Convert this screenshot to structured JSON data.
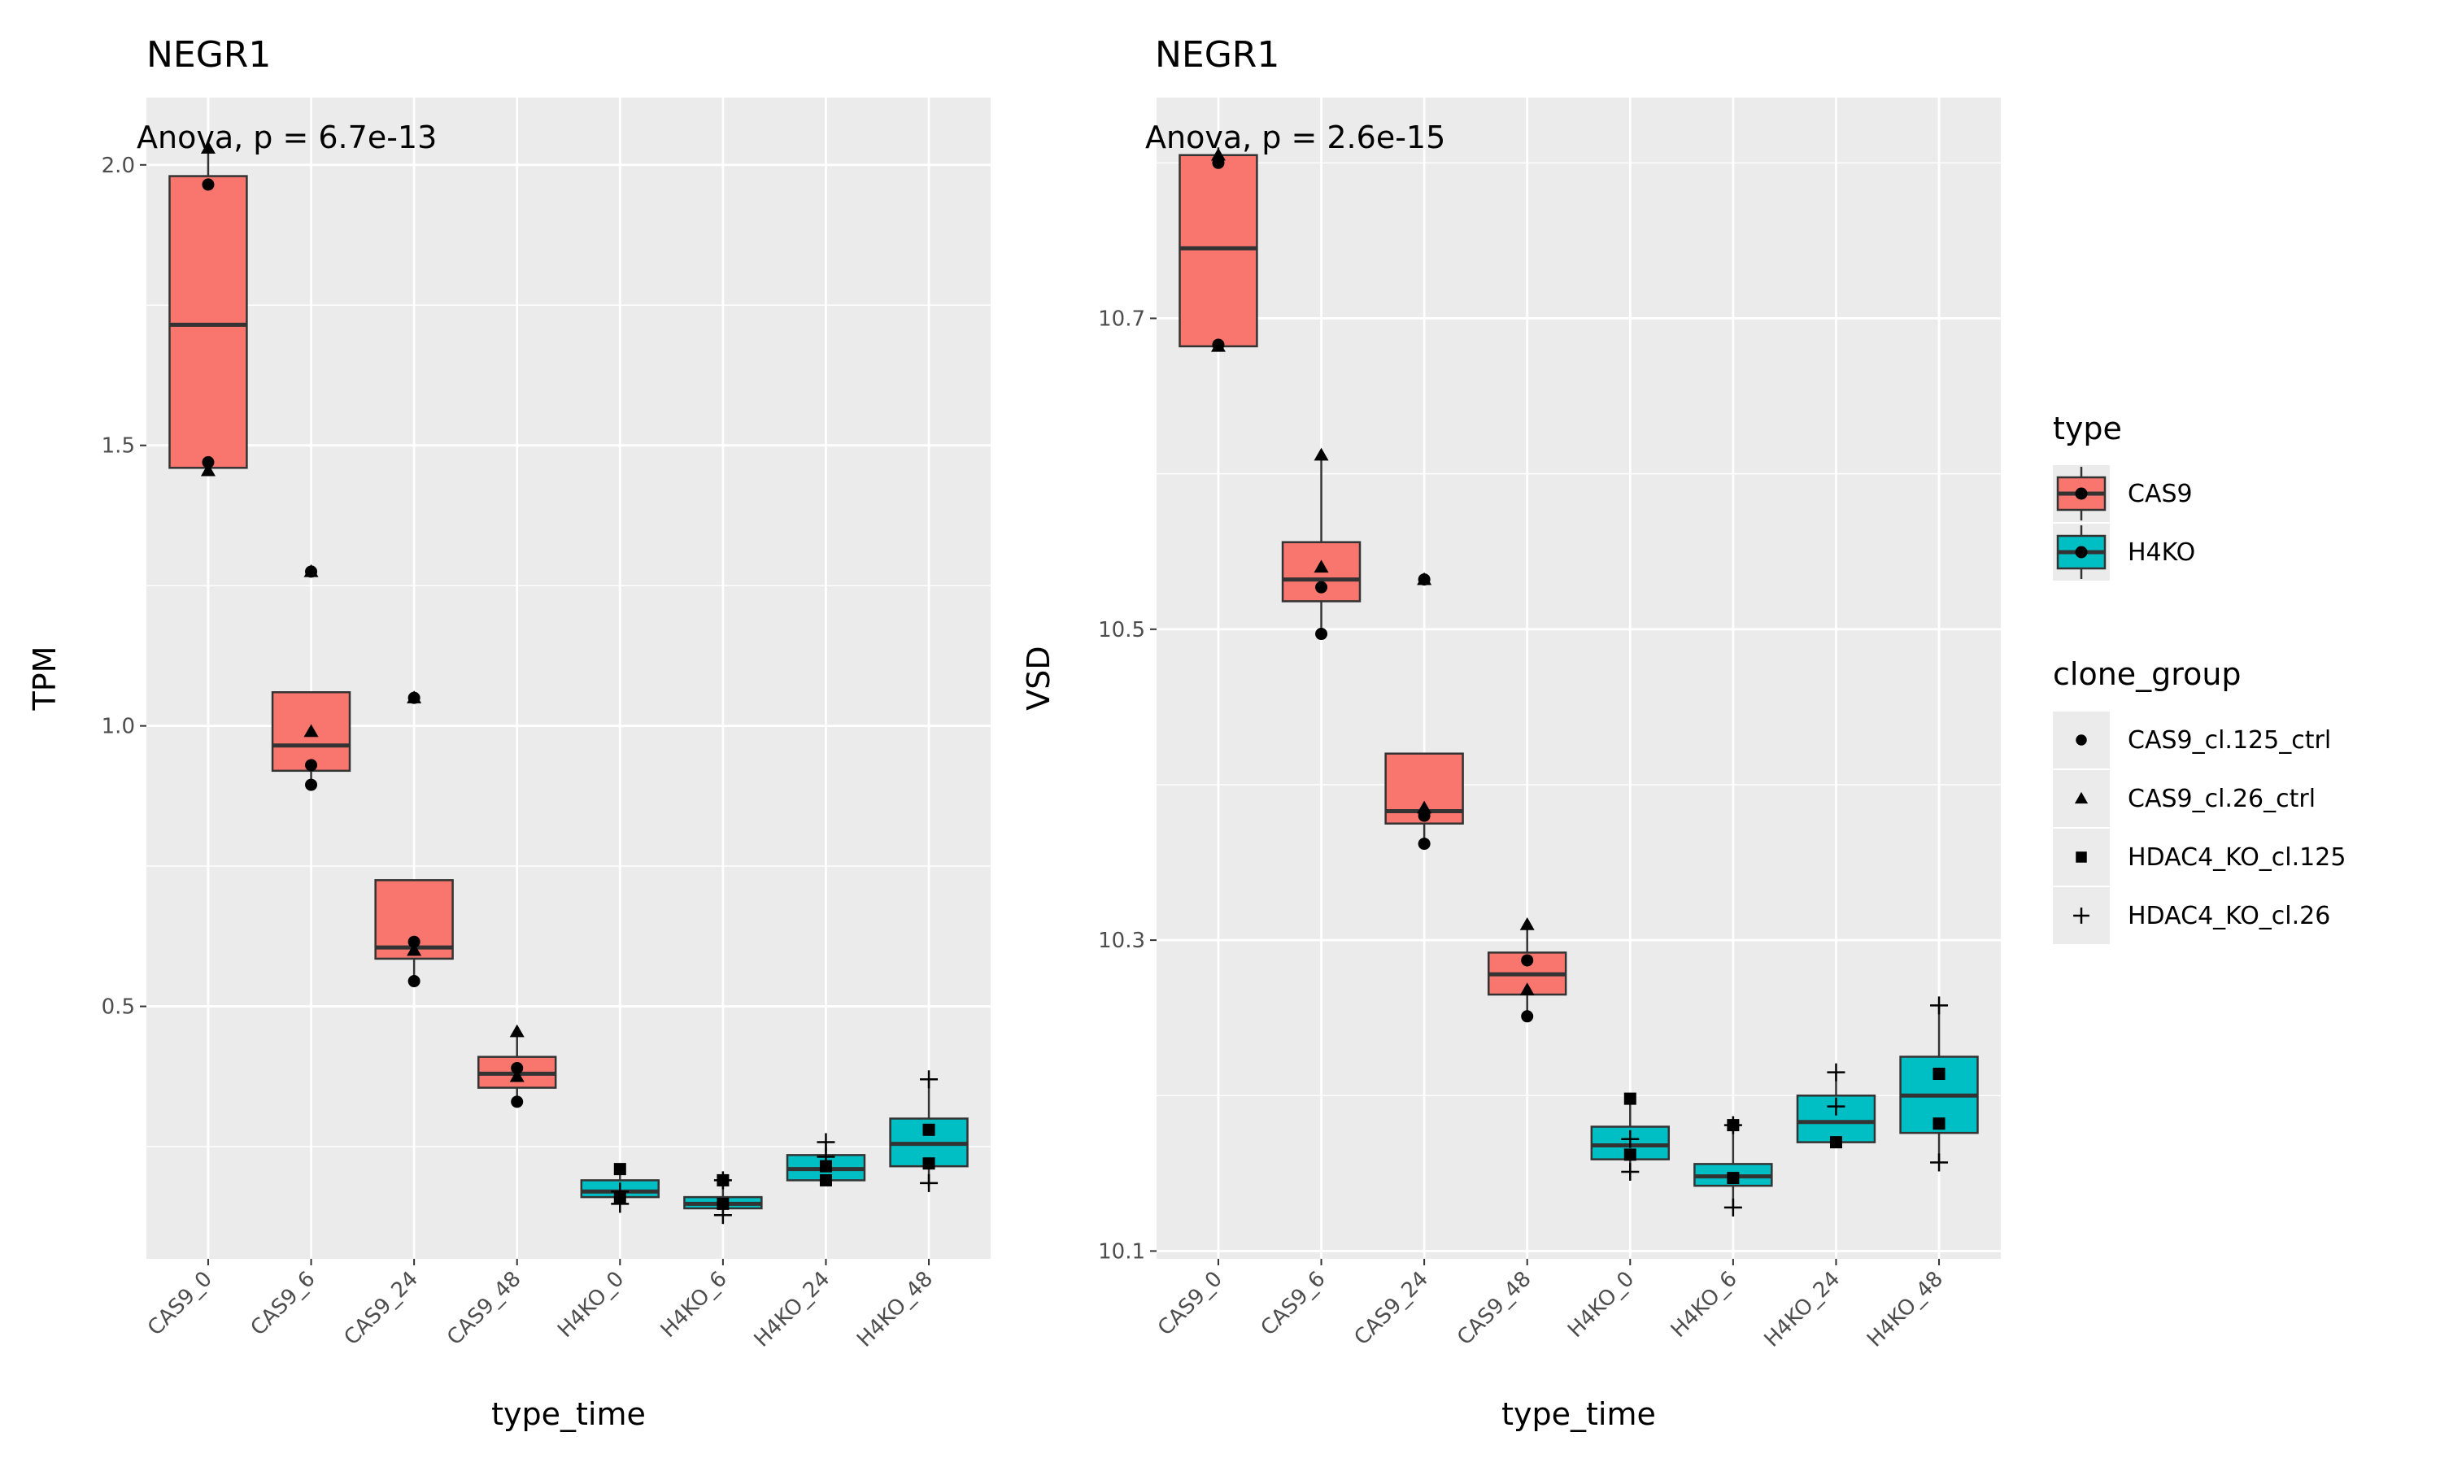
{
  "chart_data": [
    {
      "type": "boxplot",
      "title": "NEGR1",
      "annotation": "Anova, p = 6.7e-13",
      "xlabel": "type_time",
      "ylabel": "TPM",
      "categories": [
        "CAS9_0",
        "CAS9_6",
        "CAS9_24",
        "CAS9_48",
        "H4KO_0",
        "H4KO_6",
        "H4KO_24",
        "H4KO_48"
      ],
      "category_type": [
        "CAS9",
        "CAS9",
        "CAS9",
        "CAS9",
        "H4KO",
        "H4KO",
        "H4KO",
        "H4KO"
      ],
      "ylim": [
        0.05,
        2.12
      ],
      "yticks": [
        0.5,
        1.0,
        1.5,
        2.0
      ],
      "ytick_labels": [
        "0.5",
        "1.0",
        "1.5",
        "2.0"
      ],
      "grid": true,
      "boxes": [
        {
          "q1": 1.46,
          "median": 1.715,
          "q3": 1.98,
          "whisker_low": 1.46,
          "whisker_high": 2.03
        },
        {
          "q1": 0.92,
          "median": 0.965,
          "q3": 1.06,
          "whisker_low": 0.89,
          "whisker_high": 1.06
        },
        {
          "q1": 0.585,
          "median": 0.605,
          "q3": 0.725,
          "whisker_low": 0.545,
          "whisker_high": 0.725
        },
        {
          "q1": 0.355,
          "median": 0.38,
          "q3": 0.41,
          "whisker_low": 0.33,
          "whisker_high": 0.455
        },
        {
          "q1": 0.16,
          "median": 0.17,
          "q3": 0.19,
          "whisker_low": 0.145,
          "whisker_high": 0.215
        },
        {
          "q1": 0.14,
          "median": 0.148,
          "q3": 0.16,
          "whisker_low": 0.125,
          "whisker_high": 0.19
        },
        {
          "q1": 0.19,
          "median": 0.21,
          "q3": 0.235,
          "whisker_low": 0.19,
          "whisker_high": 0.26
        },
        {
          "q1": 0.215,
          "median": 0.255,
          "q3": 0.3,
          "whisker_low": 0.18,
          "whisker_high": 0.37
        }
      ],
      "points": [
        {
          "c": 0,
          "y": 2.03,
          "shape": "triangle"
        },
        {
          "c": 0,
          "y": 1.965,
          "shape": "circle"
        },
        {
          "c": 0,
          "y": 1.47,
          "shape": "circle"
        },
        {
          "c": 0,
          "y": 1.455,
          "shape": "triangle"
        },
        {
          "c": 1,
          "y": 1.275,
          "shape": "circle"
        },
        {
          "c": 1,
          "y": 1.275,
          "shape": "triangle"
        },
        {
          "c": 1,
          "y": 0.99,
          "shape": "triangle"
        },
        {
          "c": 1,
          "y": 0.93,
          "shape": "circle"
        },
        {
          "c": 1,
          "y": 0.895,
          "shape": "circle"
        },
        {
          "c": 2,
          "y": 1.05,
          "shape": "circle"
        },
        {
          "c": 2,
          "y": 1.05,
          "shape": "triangle"
        },
        {
          "c": 2,
          "y": 0.615,
          "shape": "circle"
        },
        {
          "c": 2,
          "y": 0.6,
          "shape": "triangle"
        },
        {
          "c": 2,
          "y": 0.545,
          "shape": "circle"
        },
        {
          "c": 3,
          "y": 0.455,
          "shape": "triangle"
        },
        {
          "c": 3,
          "y": 0.39,
          "shape": "circle"
        },
        {
          "c": 3,
          "y": 0.375,
          "shape": "triangle"
        },
        {
          "c": 3,
          "y": 0.33,
          "shape": "circle"
        },
        {
          "c": 4,
          "y": 0.21,
          "shape": "square"
        },
        {
          "c": 4,
          "y": 0.17,
          "shape": "plus"
        },
        {
          "c": 4,
          "y": 0.16,
          "shape": "square"
        },
        {
          "c": 4,
          "y": 0.148,
          "shape": "plus"
        },
        {
          "c": 5,
          "y": 0.19,
          "shape": "plus"
        },
        {
          "c": 5,
          "y": 0.19,
          "shape": "square"
        },
        {
          "c": 5,
          "y": 0.148,
          "shape": "square"
        },
        {
          "c": 5,
          "y": 0.128,
          "shape": "plus"
        },
        {
          "c": 6,
          "y": 0.258,
          "shape": "plus"
        },
        {
          "c": 6,
          "y": 0.232,
          "shape": "plus"
        },
        {
          "c": 6,
          "y": 0.215,
          "shape": "square"
        },
        {
          "c": 6,
          "y": 0.19,
          "shape": "square"
        },
        {
          "c": 7,
          "y": 0.37,
          "shape": "plus"
        },
        {
          "c": 7,
          "y": 0.28,
          "shape": "square"
        },
        {
          "c": 7,
          "y": 0.22,
          "shape": "square"
        },
        {
          "c": 7,
          "y": 0.185,
          "shape": "plus"
        }
      ]
    },
    {
      "type": "boxplot",
      "title": "NEGR1",
      "annotation": "Anova, p = 2.6e-15",
      "xlabel": "type_time",
      "ylabel": "VSD",
      "categories": [
        "CAS9_0",
        "CAS9_6",
        "CAS9_24",
        "CAS9_48",
        "H4KO_0",
        "H4KO_6",
        "H4KO_24",
        "H4KO_48"
      ],
      "category_type": [
        "CAS9",
        "CAS9",
        "CAS9",
        "CAS9",
        "H4KO",
        "H4KO",
        "H4KO",
        "H4KO"
      ],
      "ylim": [
        10.095,
        10.842
      ],
      "yticks": [
        10.1,
        10.3,
        10.5,
        10.7
      ],
      "ytick_labels": [
        "10.1",
        "10.3",
        "10.5",
        "10.7"
      ],
      "grid": true,
      "boxes": [
        {
          "q1": 10.682,
          "median": 10.745,
          "q3": 10.805,
          "whisker_low": 10.682,
          "whisker_high": 10.81
        },
        {
          "q1": 10.518,
          "median": 10.532,
          "q3": 10.556,
          "whisker_low": 10.497,
          "whisker_high": 10.612
        },
        {
          "q1": 10.375,
          "median": 10.383,
          "q3": 10.42,
          "whisker_low": 10.362,
          "whisker_high": 10.42
        },
        {
          "q1": 10.265,
          "median": 10.278,
          "q3": 10.292,
          "whisker_low": 10.251,
          "whisker_high": 10.31
        },
        {
          "q1": 10.159,
          "median": 10.168,
          "q3": 10.18,
          "whisker_low": 10.151,
          "whisker_high": 10.198
        },
        {
          "q1": 10.142,
          "median": 10.148,
          "q3": 10.156,
          "whisker_low": 10.128,
          "whisker_high": 10.183
        },
        {
          "q1": 10.17,
          "median": 10.183,
          "q3": 10.2,
          "whisker_low": 10.17,
          "whisker_high": 10.215
        },
        {
          "q1": 10.176,
          "median": 10.2,
          "q3": 10.225,
          "whisker_low": 10.157,
          "whisker_high": 10.258
        }
      ],
      "points": [
        {
          "c": 0,
          "y": 10.805,
          "shape": "triangle"
        },
        {
          "c": 0,
          "y": 10.8,
          "shape": "circle"
        },
        {
          "c": 0,
          "y": 10.683,
          "shape": "circle"
        },
        {
          "c": 0,
          "y": 10.682,
          "shape": "triangle"
        },
        {
          "c": 1,
          "y": 10.612,
          "shape": "triangle"
        },
        {
          "c": 1,
          "y": 10.54,
          "shape": "triangle"
        },
        {
          "c": 1,
          "y": 10.527,
          "shape": "circle"
        },
        {
          "c": 1,
          "y": 10.497,
          "shape": "circle"
        },
        {
          "c": 2,
          "y": 10.532,
          "shape": "circle"
        },
        {
          "c": 2,
          "y": 10.532,
          "shape": "triangle"
        },
        {
          "c": 2,
          "y": 10.385,
          "shape": "triangle"
        },
        {
          "c": 2,
          "y": 10.38,
          "shape": "circle"
        },
        {
          "c": 2,
          "y": 10.362,
          "shape": "circle"
        },
        {
          "c": 3,
          "y": 10.31,
          "shape": "triangle"
        },
        {
          "c": 3,
          "y": 10.287,
          "shape": "circle"
        },
        {
          "c": 3,
          "y": 10.268,
          "shape": "triangle"
        },
        {
          "c": 3,
          "y": 10.251,
          "shape": "circle"
        },
        {
          "c": 4,
          "y": 10.198,
          "shape": "square"
        },
        {
          "c": 4,
          "y": 10.172,
          "shape": "plus"
        },
        {
          "c": 4,
          "y": 10.162,
          "shape": "square"
        },
        {
          "c": 4,
          "y": 10.151,
          "shape": "plus"
        },
        {
          "c": 5,
          "y": 10.181,
          "shape": "plus"
        },
        {
          "c": 5,
          "y": 10.181,
          "shape": "square"
        },
        {
          "c": 5,
          "y": 10.147,
          "shape": "square"
        },
        {
          "c": 5,
          "y": 10.128,
          "shape": "plus"
        },
        {
          "c": 6,
          "y": 10.215,
          "shape": "plus"
        },
        {
          "c": 6,
          "y": 10.193,
          "shape": "plus"
        },
        {
          "c": 6,
          "y": 10.17,
          "shape": "square"
        },
        {
          "c": 7,
          "y": 10.258,
          "shape": "plus"
        },
        {
          "c": 7,
          "y": 10.214,
          "shape": "square"
        },
        {
          "c": 7,
          "y": 10.182,
          "shape": "square"
        },
        {
          "c": 7,
          "y": 10.157,
          "shape": "plus"
        }
      ]
    }
  ],
  "colors": {
    "CAS9": "#F8766D",
    "H4KO": "#00BFC4",
    "panel_bg": "#EBEBEB",
    "grid": "#FFFFFF"
  },
  "legend": {
    "position": "right",
    "type_title": "type",
    "type_items": [
      {
        "label": "CAS9",
        "key": "CAS9"
      },
      {
        "label": "H4KO",
        "key": "H4KO"
      }
    ],
    "clone_title": "clone_group",
    "clone_items": [
      {
        "label": "CAS9_cl.125_ctrl",
        "shape": "circle"
      },
      {
        "label": "CAS9_cl.26_ctrl",
        "shape": "triangle"
      },
      {
        "label": "HDAC4_KO_cl.125",
        "shape": "square"
      },
      {
        "label": "HDAC4_KO_cl.26",
        "shape": "plus"
      }
    ]
  }
}
